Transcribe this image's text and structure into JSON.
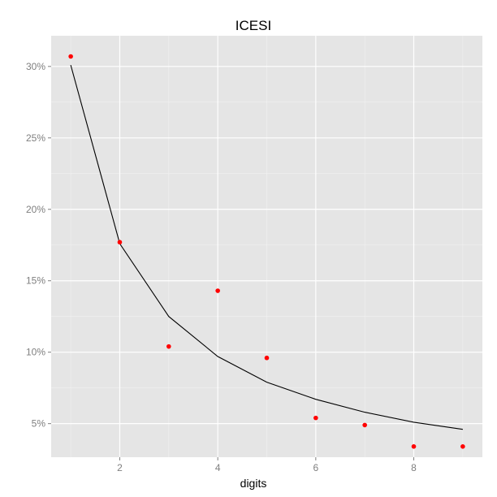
{
  "chart_data": {
    "type": "line",
    "title": "ICESI",
    "xlabel": "digits",
    "ylabel": "",
    "xlim": [
      0.6,
      9.4
    ],
    "ylim": [
      0.0265,
      0.3215
    ],
    "x_ticks": [
      2,
      4,
      6,
      8
    ],
    "x_tick_labels": [
      "2",
      "4",
      "6",
      "8"
    ],
    "y_ticks": [
      0.05,
      0.1,
      0.15,
      0.2,
      0.25,
      0.3
    ],
    "y_tick_labels": [
      "5%",
      "10%",
      "15%",
      "20%",
      "25%",
      "30%"
    ],
    "grid": true,
    "legend": "none",
    "series": [
      {
        "kind": "line",
        "color": "#000000",
        "x": [
          1,
          2,
          3,
          4,
          5,
          6,
          7,
          8,
          9
        ],
        "y": [
          0.301,
          0.176,
          0.125,
          0.097,
          0.079,
          0.067,
          0.058,
          0.051,
          0.046
        ]
      },
      {
        "kind": "points",
        "color": "#ff0000",
        "x": [
          1,
          2,
          3,
          4,
          5,
          6,
          7,
          8,
          9
        ],
        "y": [
          0.307,
          0.177,
          0.104,
          0.143,
          0.096,
          0.054,
          0.049,
          0.034,
          0.034
        ]
      }
    ]
  }
}
